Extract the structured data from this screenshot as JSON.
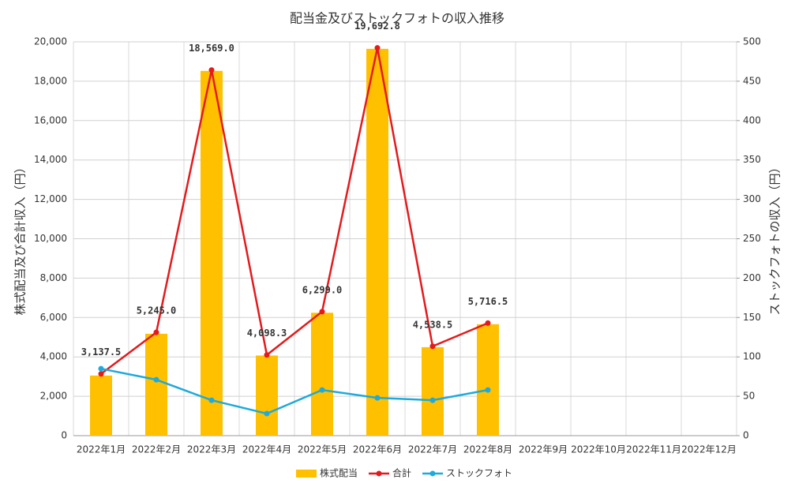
{
  "chart_data": {
    "type": "bar",
    "title": "配当金及びストックフォトの収入推移",
    "y_label": "株式配当及び合計収入（円）",
    "y2_label": "ストックフォトの収入（円）",
    "categories": [
      "2022年1月",
      "2022年2月",
      "2022年3月",
      "2022年4月",
      "2022年5月",
      "2022年6月",
      "2022年7月",
      "2022年8月",
      "2022年9月",
      "2022年10月",
      "2022年11月",
      "2022年12月"
    ],
    "series": [
      {
        "name": "株式配当",
        "type": "bar",
        "color": "#ffc000",
        "values": [
          3052.5,
          5174,
          18524,
          4070.3,
          6241,
          19644.8,
          4493.5,
          5658.5,
          null,
          null,
          null,
          null
        ]
      },
      {
        "name": "合計",
        "type": "line",
        "color": "#e41a1c",
        "values": [
          3137.5,
          5245.0,
          18569.0,
          4098.3,
          6299.0,
          19692.8,
          4538.5,
          5716.5,
          null,
          null,
          null,
          null
        ],
        "value_labels": [
          "3,137.5",
          "5,245.0",
          "18,569.0",
          "4,098.3",
          "6,299.0",
          "19,692.8",
          "4,538.5",
          "5,716.5",
          null,
          null,
          null,
          null
        ]
      },
      {
        "name": "ストックフォト",
        "type": "line",
        "axis": "y2",
        "color": "#1eaadc",
        "values": [
          85,
          71,
          45,
          28,
          58,
          48,
          45,
          58,
          null,
          null,
          null,
          null
        ]
      }
    ],
    "ylim": [
      0,
      20000
    ],
    "yticks": [
      0,
      {
        "value": 2000,
        "label": "2,000"
      },
      {
        "value": 4000,
        "label": "4,000"
      },
      {
        "value": 6000,
        "label": "6,000"
      },
      {
        "value": 8000,
        "label": "8,000"
      },
      {
        "value": 10000,
        "label": "10,000"
      },
      {
        "value": 12000,
        "label": "12,000"
      },
      {
        "value": 14000,
        "label": "14,000"
      },
      {
        "value": 16000,
        "label": "16,000"
      },
      {
        "value": 18000,
        "label": "18,000"
      },
      {
        "value": 20000,
        "label": "20,000"
      }
    ],
    "y2lim": [
      0,
      500
    ],
    "y2ticks": [
      0,
      50,
      100,
      150,
      200,
      250,
      300,
      350,
      400,
      450,
      500
    ],
    "grid": true,
    "legend": "bottom"
  }
}
